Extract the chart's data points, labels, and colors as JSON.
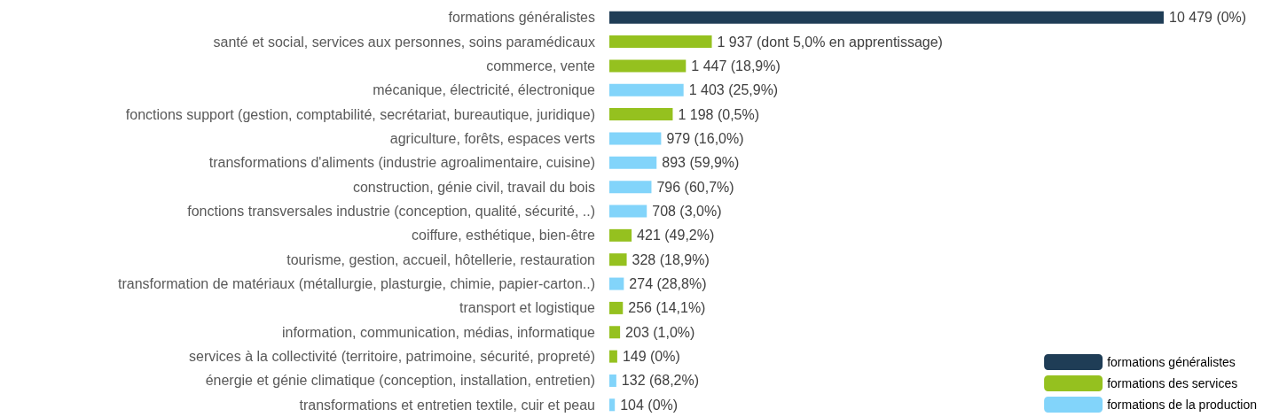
{
  "chart_data": {
    "type": "bar",
    "orientation": "horizontal",
    "legend": "bottom right",
    "categories": [
      "formations généralistes",
      "santé et social, services aux personnes, soins paramédicaux",
      "commerce, vente",
      "mécanique, électricité, électronique",
      "fonctions support (gestion, comptabilité, secrétariat, bureautique, juridique)",
      "agriculture, forêts, espaces verts",
      "transformations d'aliments (industrie agroalimentaire, cuisine)",
      "construction, génie civil, travail du bois",
      "fonctions transversales industrie (conception, qualité, sécurité, ..)",
      "coiffure, esthétique, bien-être",
      "tourisme, gestion, accueil, hôtellerie, restauration",
      "transformation de matériaux (métallurgie, plasturgie, chimie, papier-carton..)",
      "transport et logistique",
      "information, communication, médias, informatique",
      "services à la collectivité (territoire, patrimoine, sécurité, propreté)",
      "énergie et génie climatique (conception, installation, entretien)",
      "transformations et entretien textile, cuir et peau"
    ],
    "series": [
      {
        "name": "formations généralistes",
        "color": "#1f3d56",
        "values": [
          10479,
          null,
          null,
          null,
          null,
          null,
          null,
          null,
          null,
          null,
          null,
          null,
          null,
          null,
          null,
          null,
          null
        ],
        "value_labels": [
          "10 479 (0%)",
          null,
          null,
          null,
          null,
          null,
          null,
          null,
          null,
          null,
          null,
          null,
          null,
          null,
          null,
          null,
          null
        ]
      },
      {
        "name": "formations des services",
        "color": "#95c11f",
        "values": [
          null,
          1937,
          1447,
          null,
          1198,
          null,
          null,
          null,
          null,
          421,
          328,
          null,
          256,
          203,
          149,
          null,
          null
        ],
        "value_labels": [
          null,
          "1 937 (dont 5,0% en apprentissage)",
          "1 447 (18,9%)",
          null,
          "1 198 (0,5%)",
          null,
          null,
          null,
          null,
          "421 (49,2%)",
          "328 (18,9%)",
          null,
          "256 (14,1%)",
          "203 (1,0%)",
          "149 (0%)",
          null,
          null
        ]
      },
      {
        "name": "formations de la production",
        "color": "#82d4fa",
        "values": [
          null,
          null,
          null,
          1403,
          null,
          979,
          893,
          796,
          708,
          null,
          null,
          274,
          null,
          null,
          null,
          132,
          104
        ],
        "value_labels": [
          null,
          null,
          null,
          "1 403 (25,9%)",
          null,
          "979 (16,0%)",
          "893 (59,9%)",
          "796 (60,7%)",
          "708 (3,0%)",
          null,
          null,
          "274 (28,8%)",
          null,
          null,
          null,
          "132 (68,2%)",
          "104 (0%)"
        ]
      }
    ]
  }
}
